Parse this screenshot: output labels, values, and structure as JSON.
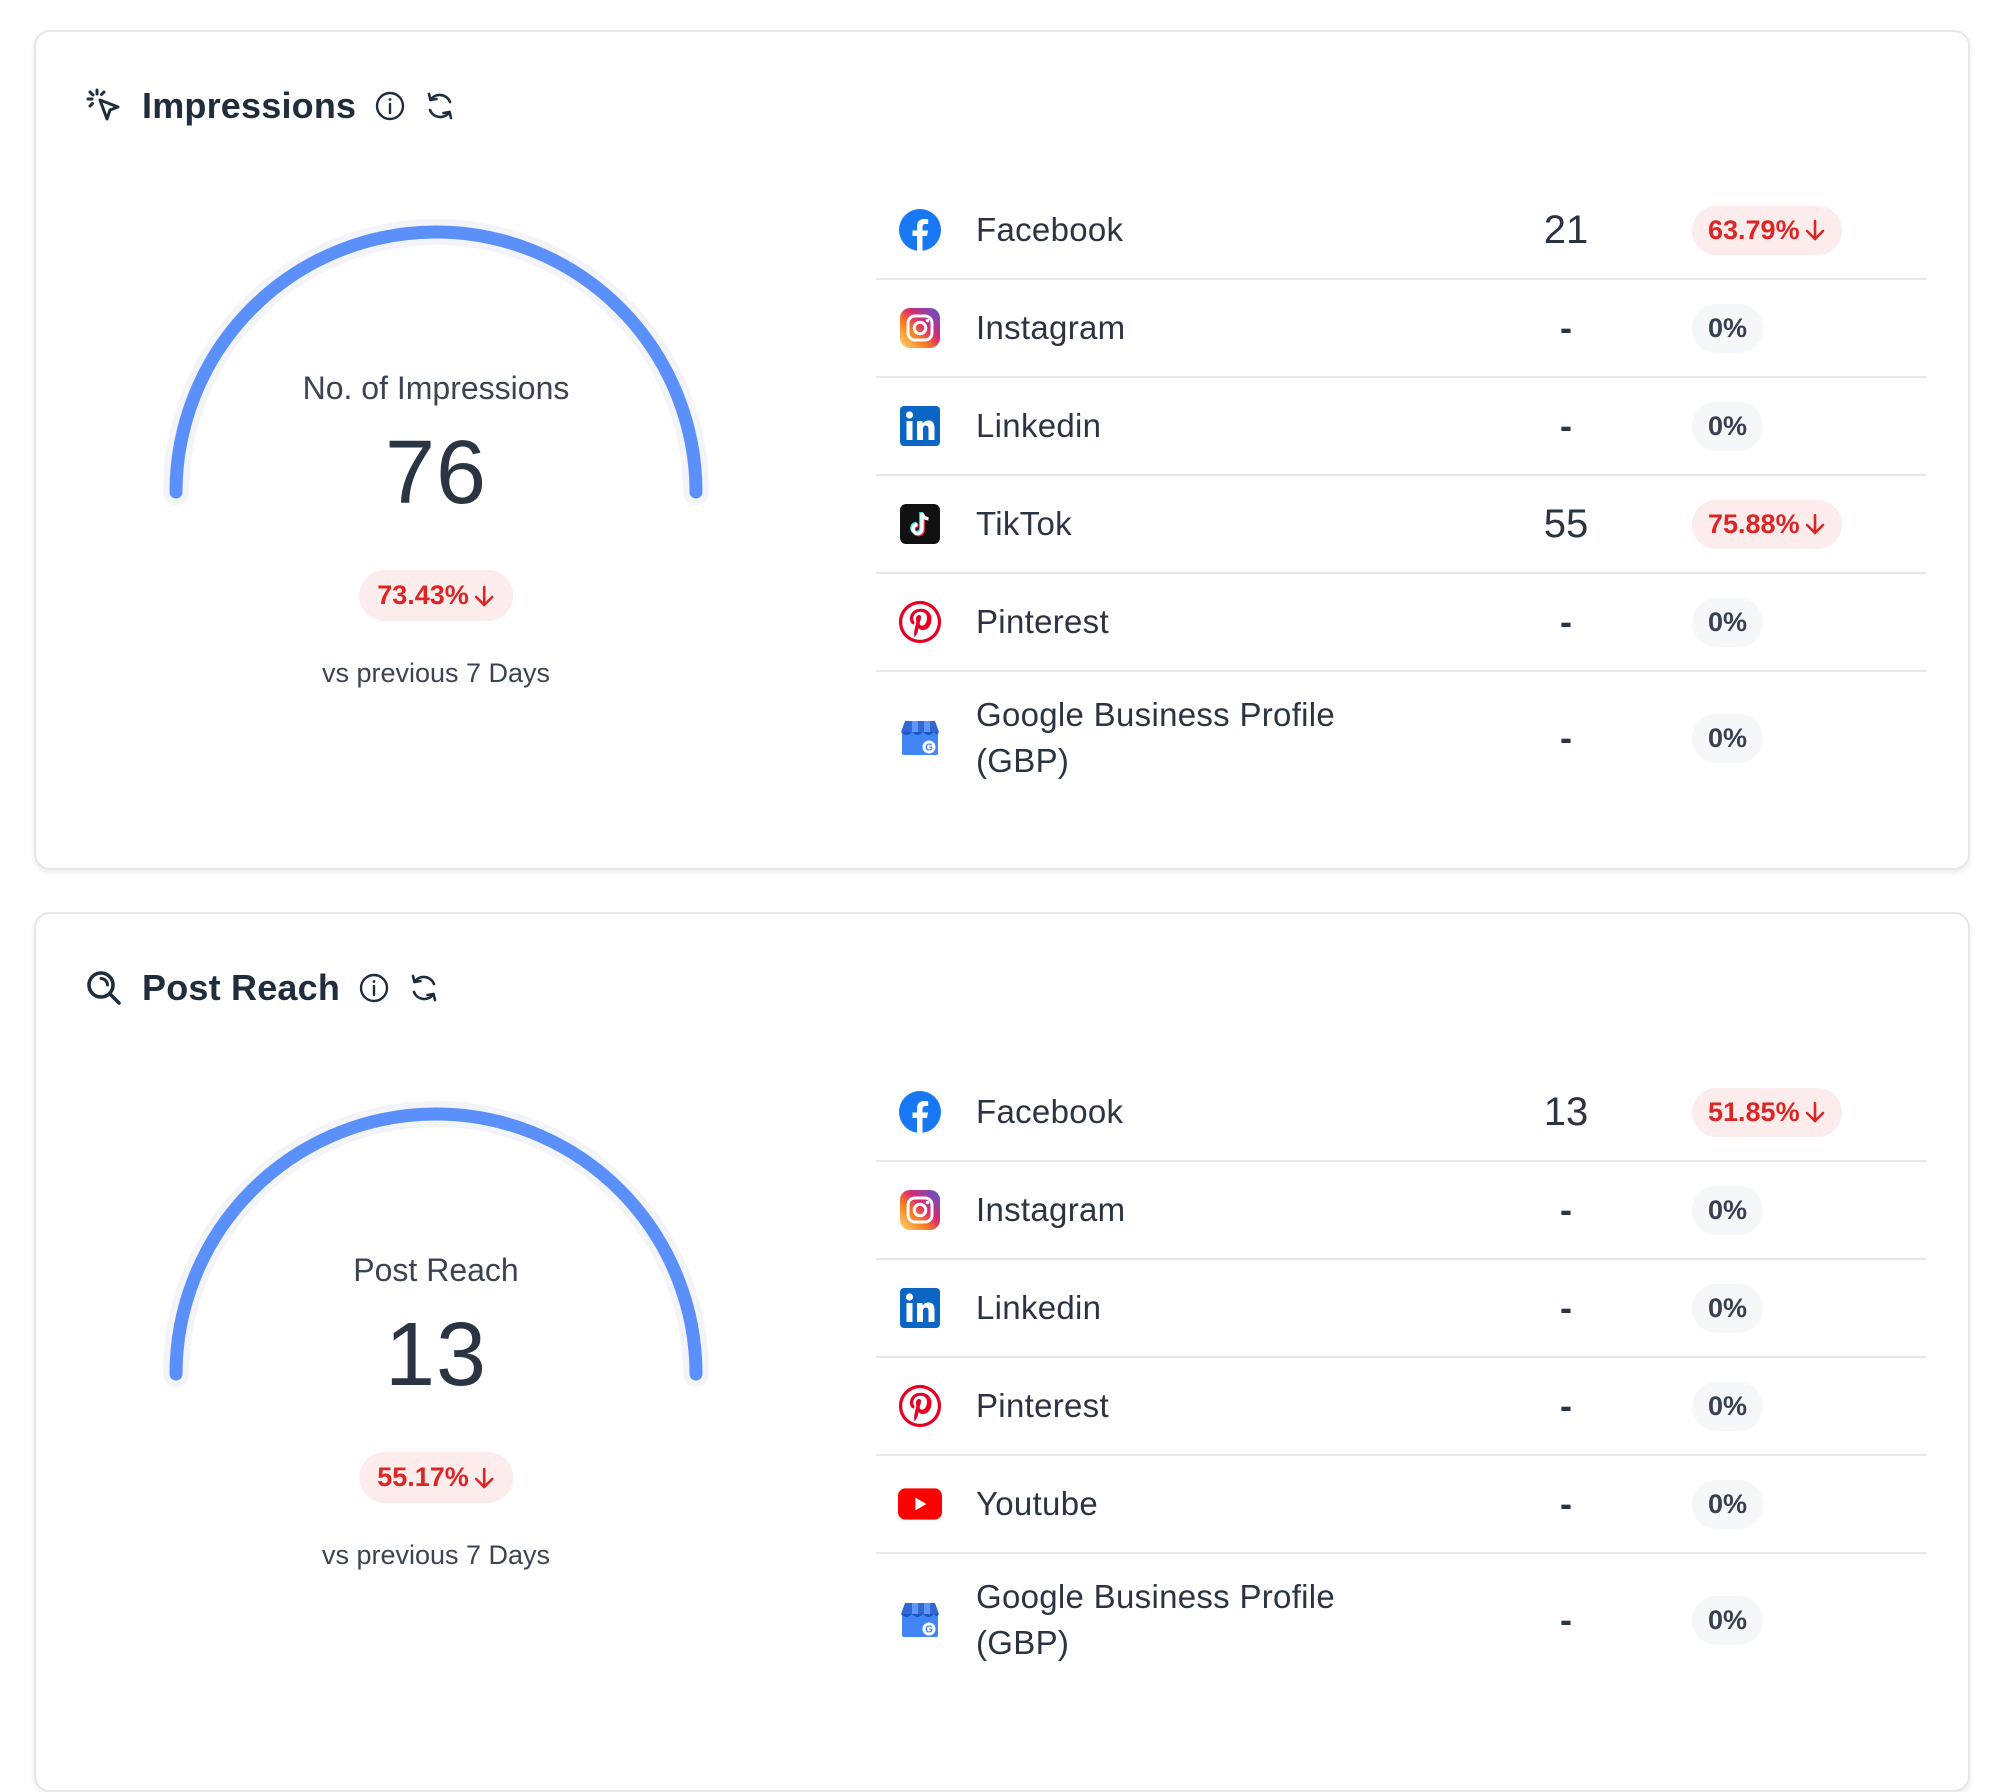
{
  "impressions": {
    "title": "Impressions",
    "title_icon": "cursor-click-icon",
    "gauge_label": "No. of Impressions",
    "gauge_value": "76",
    "change": "73.43%",
    "vs_text": "vs previous 7 Days",
    "platforms": [
      {
        "name": "Facebook",
        "icon": "facebook-icon",
        "value": "21",
        "change": "63.79%",
        "negative": true
      },
      {
        "name": "Instagram",
        "icon": "instagram-icon",
        "value": "-",
        "change": "0%",
        "negative": false
      },
      {
        "name": "Linkedin",
        "icon": "linkedin-icon",
        "value": "-",
        "change": "0%",
        "negative": false
      },
      {
        "name": "TikTok",
        "icon": "tiktok-icon",
        "value": "55",
        "change": "75.88%",
        "negative": true
      },
      {
        "name": "Pinterest",
        "icon": "pinterest-icon",
        "value": "-",
        "change": "0%",
        "negative": false
      },
      {
        "name": "Google Business Profile (GBP)",
        "icon": "google-business-icon",
        "value": "-",
        "change": "0%",
        "negative": false
      }
    ]
  },
  "reach": {
    "title": "Post Reach",
    "title_icon": "search-icon",
    "gauge_label": "Post Reach",
    "gauge_value": "13",
    "change": "55.17%",
    "vs_text": "vs previous 7 Days",
    "platforms": [
      {
        "name": "Facebook",
        "icon": "facebook-icon",
        "value": "13",
        "change": "51.85%",
        "negative": true
      },
      {
        "name": "Instagram",
        "icon": "instagram-icon",
        "value": "-",
        "change": "0%",
        "negative": false
      },
      {
        "name": "Linkedin",
        "icon": "linkedin-icon",
        "value": "-",
        "change": "0%",
        "negative": false
      },
      {
        "name": "Pinterest",
        "icon": "pinterest-icon",
        "value": "-",
        "change": "0%",
        "negative": false
      },
      {
        "name": "Youtube",
        "icon": "youtube-icon",
        "value": "-",
        "change": "0%",
        "negative": false
      },
      {
        "name": "Google Business Profile (GBP)",
        "icon": "google-business-icon",
        "value": "-",
        "change": "0%",
        "negative": false
      }
    ]
  },
  "colors": {
    "gauge_fill": "#5b8ff9",
    "gauge_track": "#f3f4f8",
    "negative": "#dc2626",
    "negative_bg": "#fdecec"
  }
}
